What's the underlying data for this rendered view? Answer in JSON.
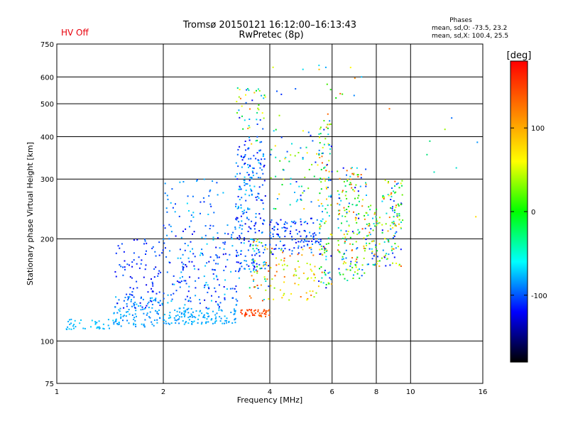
{
  "header": {
    "title_line1": "Tromsø 20150121 16:12:00–16:13:43",
    "title_line2": "RwPretec (8p)",
    "status": "HV Off",
    "status_color": "#e8000b",
    "stats_title": "Phases",
    "stats_line1": "mean, sd,O: -73.5, 23.2",
    "stats_line2": "mean, sd,X: 100.4, 25.5"
  },
  "chart_data": {
    "type": "scatter",
    "xlabel": "Frequency [MHz]",
    "ylabel": "Stationary phase Virtual Height [km]",
    "x_scale": "log",
    "y_scale": "log",
    "xlim": [
      1,
      16
    ],
    "ylim": [
      75,
      750
    ],
    "x_ticks": [
      1,
      2,
      4,
      6,
      8,
      10,
      16
    ],
    "x_tick_labels": [
      "1",
      "2",
      "4",
      "6",
      "8",
      "10",
      "16"
    ],
    "y_ticks": [
      75,
      100,
      200,
      300,
      400,
      500,
      600,
      750
    ],
    "y_tick_labels": [
      "75",
      "100",
      "200",
      "300",
      "400",
      "500",
      "600",
      "750"
    ],
    "x_gridlines": [
      2,
      4,
      6,
      8,
      10
    ],
    "y_gridlines": [
      100,
      200,
      300,
      400,
      500,
      600
    ],
    "grid": true,
    "colorbar": {
      "label": "[deg]",
      "range": [
        -180,
        180
      ],
      "ticks": [
        100,
        0,
        -100
      ],
      "tick_labels": [
        "100",
        "0",
        "-100"
      ],
      "colors": [
        "#ff0000",
        "#ff8000",
        "#ffff00",
        "#00ff00",
        "#00ffff",
        "#0000ff",
        "#000000"
      ]
    },
    "series": [
      {
        "color_by": "phase",
        "clusters": [
          {
            "f": [
              1.0,
              1.45
            ],
            "h": [
              108,
              116
            ],
            "phase": [
              -55,
              -40
            ],
            "n": 40
          },
          {
            "f": [
              1.45,
              2.0
            ],
            "h": [
              110,
              135
            ],
            "phase": [
              -70,
              -45
            ],
            "n": 110
          },
          {
            "f": [
              1.45,
              2.0
            ],
            "h": [
              125,
              200
            ],
            "phase": [
              -110,
              -70
            ],
            "n": 90
          },
          {
            "f": [
              2.0,
              3.2
            ],
            "h": [
              112,
              125
            ],
            "phase": [
              -65,
              -45
            ],
            "n": 130
          },
          {
            "f": [
              2.0,
              3.3
            ],
            "h": [
              125,
              220
            ],
            "phase": [
              -110,
              -40
            ],
            "n": 190
          },
          {
            "f": [
              2.0,
              3.0
            ],
            "h": [
              220,
              300
            ],
            "phase": [
              -90,
              -40
            ],
            "n": 40
          },
          {
            "f": [
              3.2,
              3.9
            ],
            "h": [
              160,
              380
            ],
            "phase": [
              -110,
              -40
            ],
            "n": 230
          },
          {
            "f": [
              3.2,
              3.9
            ],
            "h": [
              380,
              560
            ],
            "phase": [
              -110,
              130
            ],
            "n": 50
          },
          {
            "f": [
              3.3,
              4.0
            ],
            "h": [
              118,
              124
            ],
            "phase": [
              130,
              165
            ],
            "n": 45
          },
          {
            "f": [
              3.5,
              4.0
            ],
            "h": [
              130,
              200
            ],
            "phase": [
              -100,
              160
            ],
            "n": 50
          },
          {
            "f": [
              4.0,
              5.6
            ],
            "h": [
              180,
              230
            ],
            "phase": [
              -110,
              -55
            ],
            "n": 120
          },
          {
            "f": [
              4.0,
              5.5
            ],
            "h": [
              130,
              190
            ],
            "phase": [
              60,
              150
            ],
            "n": 70
          },
          {
            "f": [
              4.0,
              5.5
            ],
            "h": [
              230,
              420
            ],
            "phase": [
              -100,
              110
            ],
            "n": 60
          },
          {
            "f": [
              5.5,
              6.0
            ],
            "h": [
              140,
              450
            ],
            "phase": [
              -110,
              150
            ],
            "n": 120
          },
          {
            "f": [
              6.2,
              7.5
            ],
            "h": [
              150,
              330
            ],
            "phase": [
              -110,
              150
            ],
            "n": 170
          },
          {
            "f": [
              7.5,
              8.2
            ],
            "h": [
              165,
              260
            ],
            "phase": [
              -100,
              140
            ],
            "n": 60
          },
          {
            "f": [
              8.3,
              9.5
            ],
            "h": [
              165,
              300
            ],
            "phase": [
              -110,
              150
            ],
            "n": 110
          },
          {
            "f": [
              4.0,
              9.0
            ],
            "h": [
              450,
              650
            ],
            "phase": [
              -110,
              150
            ],
            "n": 20
          },
          {
            "f": [
              11.0,
              16.0
            ],
            "h": [
              200,
              560
            ],
            "phase": [
              -90,
              160
            ],
            "n": 8
          }
        ]
      }
    ]
  }
}
